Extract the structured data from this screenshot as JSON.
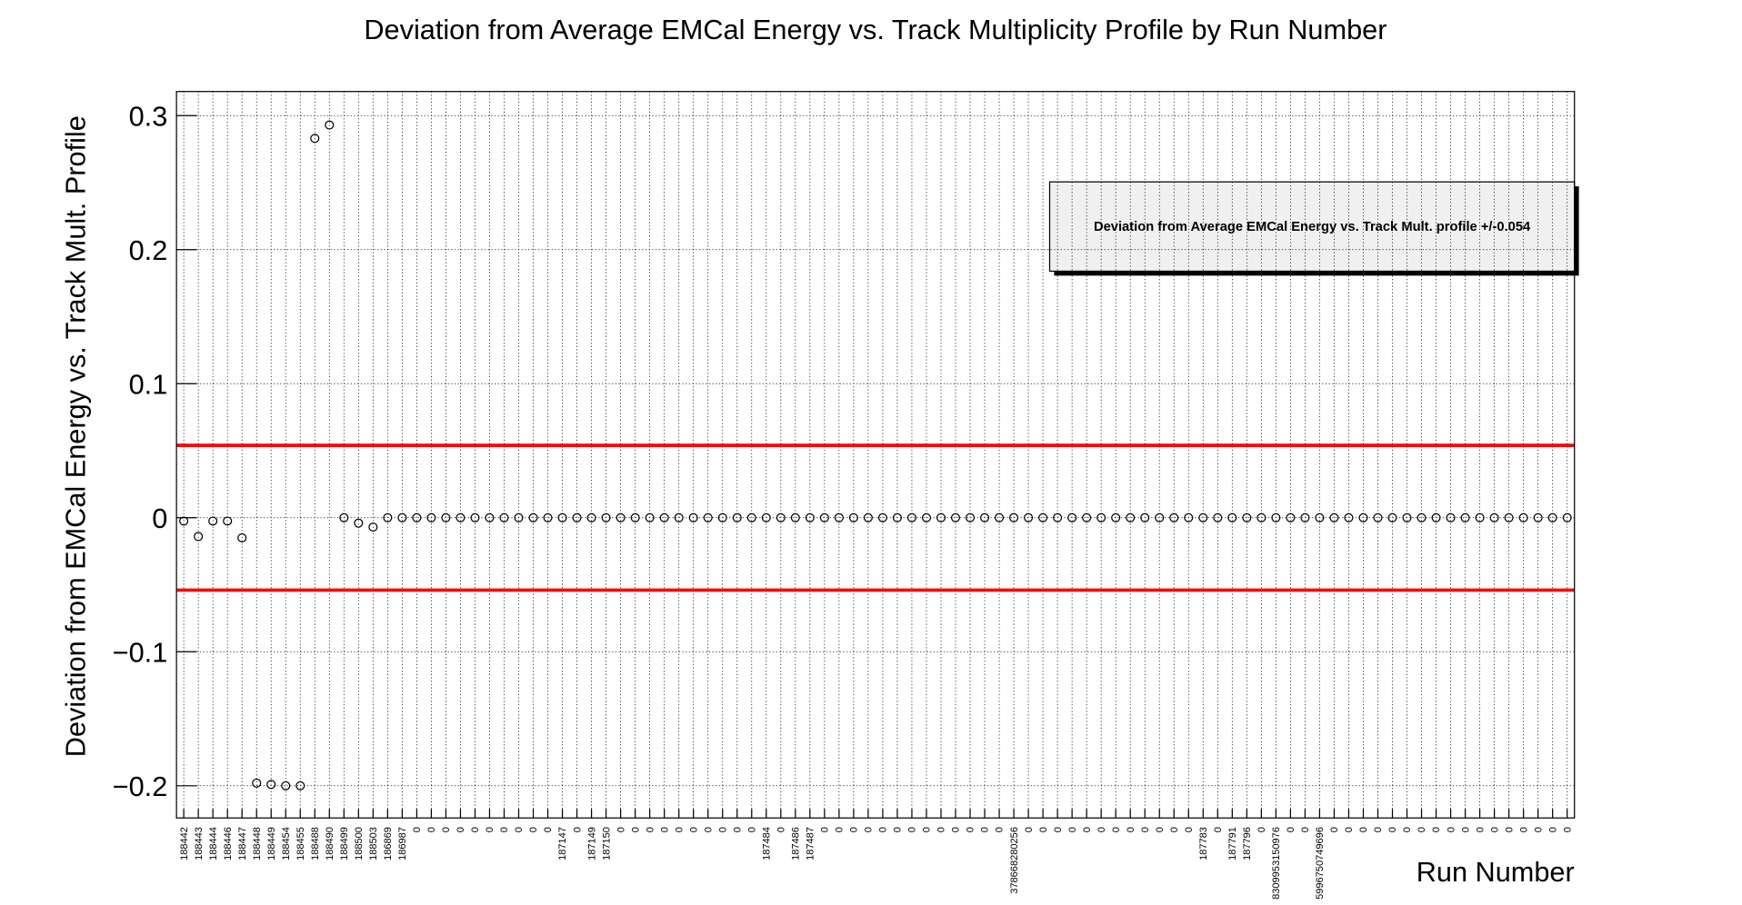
{
  "chart_data": {
    "type": "scatter",
    "title": "Deviation from Average EMCal Energy vs. Track Multiplicity Profile by Run Number",
    "x_label": "Run Number",
    "y_label": "Deviation from EMCal Energy vs. Track Mult. Profile",
    "legend_text": "Deviation from Average EMCal Energy vs. Track Mult. profile +/-0.054",
    "thresholds": [
      0.054,
      -0.054
    ],
    "threshold_color": "#ff0000",
    "color": "#000000",
    "grid": true,
    "categories": [
      "188442",
      "188443",
      "188444",
      "188446",
      "188447",
      "188448",
      "188449",
      "188454",
      "188455",
      "188488",
      "188490",
      "188499",
      "188500",
      "188503",
      "186869",
      "186987",
      "0",
      "0",
      "0",
      "0",
      "0",
      "0",
      "0",
      "0",
      "0",
      "0",
      "187147",
      "0",
      "187149",
      "187150",
      "0",
      "0",
      "0",
      "0",
      "0",
      "0",
      "0",
      "0",
      "0",
      "0",
      "187484",
      "0",
      "187486",
      "187487",
      "0",
      "0",
      "0",
      "0",
      "0",
      "0",
      "0",
      "0",
      "0",
      "0",
      "0",
      "0",
      "0",
      "378668280256",
      "0",
      "0",
      "0",
      "0",
      "0",
      "0",
      "0",
      "0",
      "0",
      "0",
      "0",
      "0",
      "187783",
      "0",
      "187791",
      "187796",
      "0",
      "8309953150976",
      "0",
      "0",
      "5996750749696",
      "0",
      "0",
      "0",
      "0",
      "0",
      "0",
      "0",
      "0",
      "0",
      "0",
      "0",
      "0",
      "0",
      "0",
      "0",
      "0",
      "0"
    ],
    "values": [
      -0.0025,
      -0.014,
      -0.0025,
      -0.0025,
      -0.015,
      -0.198,
      -0.199,
      -0.2,
      -0.2,
      0.283,
      0.293,
      0,
      -0.004,
      -0.007,
      0,
      0,
      0,
      0,
      0,
      0,
      0,
      0,
      0,
      0,
      0,
      0,
      0,
      0,
      0,
      0,
      0,
      0,
      0,
      0,
      0,
      0,
      0,
      0,
      0,
      0,
      0,
      0,
      0,
      0,
      0,
      0,
      0,
      0,
      0,
      0,
      0,
      0,
      0,
      0,
      0,
      0,
      0,
      0,
      0,
      0,
      0,
      0,
      0,
      0,
      0,
      0,
      0,
      0,
      0,
      0,
      0,
      0,
      0,
      0,
      0,
      0,
      0,
      0,
      0,
      0,
      0,
      0,
      0,
      0,
      0,
      0,
      0,
      0,
      0,
      0,
      0,
      0,
      0,
      0,
      0,
      0
    ],
    "ylim": [
      -0.224,
      0.318
    ],
    "yticks": [
      {
        "value": -0.2,
        "label": "−0.2"
      },
      {
        "value": -0.1,
        "label": "−0.1"
      },
      0,
      0.1,
      0.2,
      0.3
    ]
  }
}
